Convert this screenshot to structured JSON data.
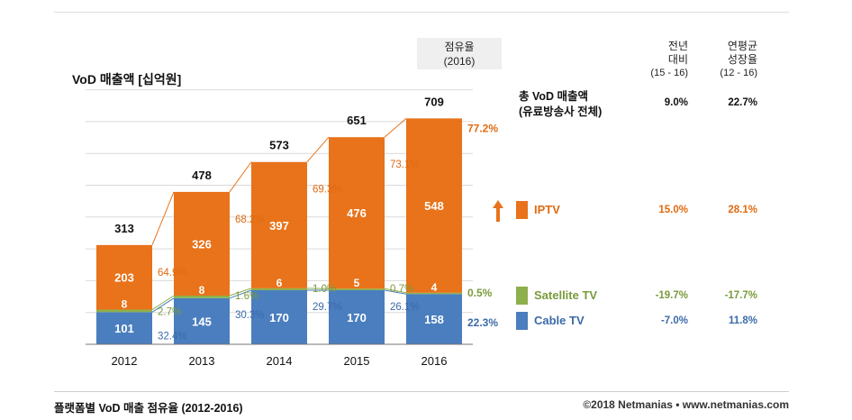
{
  "title": "VoD 매출액 [십억원]",
  "share_header": [
    "점유율",
    "(2016)"
  ],
  "yoy_header": [
    "전년",
    "대비",
    "(15 - 16)"
  ],
  "cagr_header": [
    "연평균",
    "성장율",
    "(12 - 16)"
  ],
  "total_label": [
    "총 VoD 매출액",
    "(유료방송사 전체)"
  ],
  "total_yoy": "9.0%",
  "total_cagr": "22.7%",
  "footer_left": "플랫폼별 VoD 매출 점유율 (2012-2016)",
  "footer_right": "©2018 Netmanias • www.netmanias.com",
  "colors": {
    "iptv": "#e8731a",
    "satellite": "#8db04c",
    "cable": "#4a7ebf",
    "iptv_text": "#e06a10",
    "cable_text": "#3c6aa8",
    "satellite_text": "#7a9a3c"
  },
  "legend": [
    {
      "name": "IPTV",
      "yoy": "15.0%",
      "cagr": "28.1%",
      "arrow": "up-arrow-icon"
    },
    {
      "name": "Satellite TV",
      "yoy": "-19.7%",
      "cagr": "-17.7%"
    },
    {
      "name": "Cable TV",
      "yoy": "-7.0%",
      "cagr": "11.8%"
    }
  ],
  "chart_data": {
    "type": "bar",
    "stacked": true,
    "categories": [
      "2012",
      "2013",
      "2014",
      "2015",
      "2016"
    ],
    "totals": [
      313,
      478,
      573,
      651,
      709
    ],
    "series": [
      {
        "name": "Cable TV",
        "values": [
          101,
          145,
          170,
          170,
          158
        ],
        "shares": [
          "32.4%",
          "30.3%",
          "29.7%",
          "26.1%",
          "22.3%"
        ]
      },
      {
        "name": "Satellite TV",
        "values": [
          8,
          8,
          6,
          5,
          4
        ],
        "shares": [
          "2.7%",
          "1.6%",
          "1.0%",
          "0.7%",
          "0.5%"
        ]
      },
      {
        "name": "IPTV",
        "values": [
          203,
          326,
          397,
          476,
          548
        ],
        "shares": [
          "64.9%",
          "68.2%",
          "69.3%",
          "73.1%",
          "77.2%"
        ]
      }
    ],
    "ylim": [
      0,
      800
    ],
    "grid": true
  }
}
